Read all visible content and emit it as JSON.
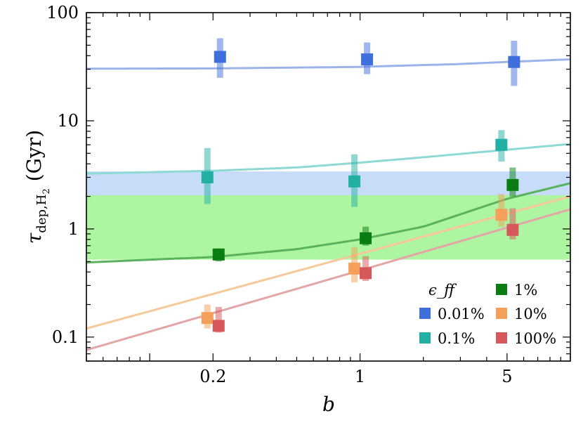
{
  "chart_data": {
    "type": "scatter",
    "title": "",
    "xlabel": "b",
    "ylabel": "τ_dep,H2 (Gyr)",
    "ylabel_parts": {
      "symbol": "τ",
      "subscript": "dep,H",
      "sub2": "2",
      "unit": "(Gyr)"
    },
    "xscale": "log",
    "yscale": "log",
    "xlim": [
      0.05,
      10
    ],
    "ylim": [
      0.06,
      100
    ],
    "x_ticks": [
      {
        "value": 0.2,
        "label": "0.2"
      },
      {
        "value": 1,
        "label": "1"
      },
      {
        "value": 5,
        "label": "5"
      }
    ],
    "y_ticks": [
      {
        "value": 0.1,
        "label": "0.1"
      },
      {
        "value": 1,
        "label": "1"
      },
      {
        "value": 10,
        "label": "10"
      },
      {
        "value": 100,
        "label": "100"
      }
    ],
    "bands": [
      {
        "y0": 0.8,
        "y1": 3.4,
        "color": "#c6dcf8"
      },
      {
        "y0": 0.52,
        "y1": 2.05,
        "color": "#adf5a1"
      }
    ],
    "legend": {
      "title": "ϵ_ff",
      "position": "bottom-right"
    },
    "series": [
      {
        "name": "0.01%",
        "color": "#3f6fdc",
        "line_color": "#9cb3ea",
        "points": [
          {
            "x": 0.2,
            "y": 39,
            "lo": 25,
            "hi": 58
          },
          {
            "x": 1,
            "y": 37,
            "lo": 27,
            "hi": 53
          },
          {
            "x": 5,
            "y": 35,
            "lo": 21,
            "hi": 55
          }
        ],
        "fit": [
          [
            0.05,
            30.3
          ],
          [
            0.2,
            30.5
          ],
          [
            1,
            31.5
          ],
          [
            3,
            33.5
          ],
          [
            5,
            35
          ],
          [
            10,
            37
          ]
        ]
      },
      {
        "name": "0.1%",
        "color": "#23b0a4",
        "line_color": "#8ed9d3",
        "points": [
          {
            "x": 0.2,
            "y": 3.0,
            "lo": 1.7,
            "hi": 5.6
          },
          {
            "x": 1,
            "y": 2.75,
            "lo": 1.6,
            "hi": 4.9
          },
          {
            "x": 5,
            "y": 6.0,
            "lo": 4.2,
            "hi": 8.2
          }
        ],
        "fit": [
          [
            0.05,
            3.25
          ],
          [
            0.2,
            3.45
          ],
          [
            0.5,
            3.7
          ],
          [
            1,
            4.1
          ],
          [
            2,
            4.6
          ],
          [
            5,
            5.4
          ],
          [
            10,
            6.1
          ]
        ]
      },
      {
        "name": "1%",
        "color": "#0a7d12",
        "line_color": "#59b25d",
        "points": [
          {
            "x": 0.2,
            "y": 0.58,
            "lo": 0.5,
            "hi": 0.66
          },
          {
            "x": 1,
            "y": 0.82,
            "lo": 0.7,
            "hi": 1.05
          },
          {
            "x": 5,
            "y": 2.55,
            "lo": 2.0,
            "hi": 3.7
          }
        ],
        "fit": [
          [
            0.05,
            0.49
          ],
          [
            0.2,
            0.55
          ],
          [
            0.5,
            0.65
          ],
          [
            1,
            0.8
          ],
          [
            2,
            1.05
          ],
          [
            5,
            1.9
          ],
          [
            10,
            2.65
          ]
        ]
      },
      {
        "name": "10%",
        "color": "#f4a05a",
        "line_color": "#f6c89a",
        "points": [
          {
            "x": 0.2,
            "y": 0.15,
            "lo": 0.12,
            "hi": 0.2
          },
          {
            "x": 1,
            "y": 0.43,
            "lo": 0.32,
            "hi": 0.68
          },
          {
            "x": 5,
            "y": 1.35,
            "lo": 1.05,
            "hi": 2.1
          }
        ],
        "fit": [
          [
            0.05,
            0.12
          ],
          [
            10,
            2.0
          ]
        ]
      },
      {
        "name": "100%",
        "color": "#d6585a",
        "line_color": "#e3a5a6",
        "points": [
          {
            "x": 0.2,
            "y": 0.127,
            "lo": 0.11,
            "hi": 0.19
          },
          {
            "x": 1,
            "y": 0.39,
            "lo": 0.33,
            "hi": 0.56
          },
          {
            "x": 5,
            "y": 0.98,
            "lo": 0.8,
            "hi": 1.55
          }
        ],
        "fit": [
          [
            0.05,
            0.076
          ],
          [
            10,
            1.52
          ]
        ]
      }
    ]
  }
}
